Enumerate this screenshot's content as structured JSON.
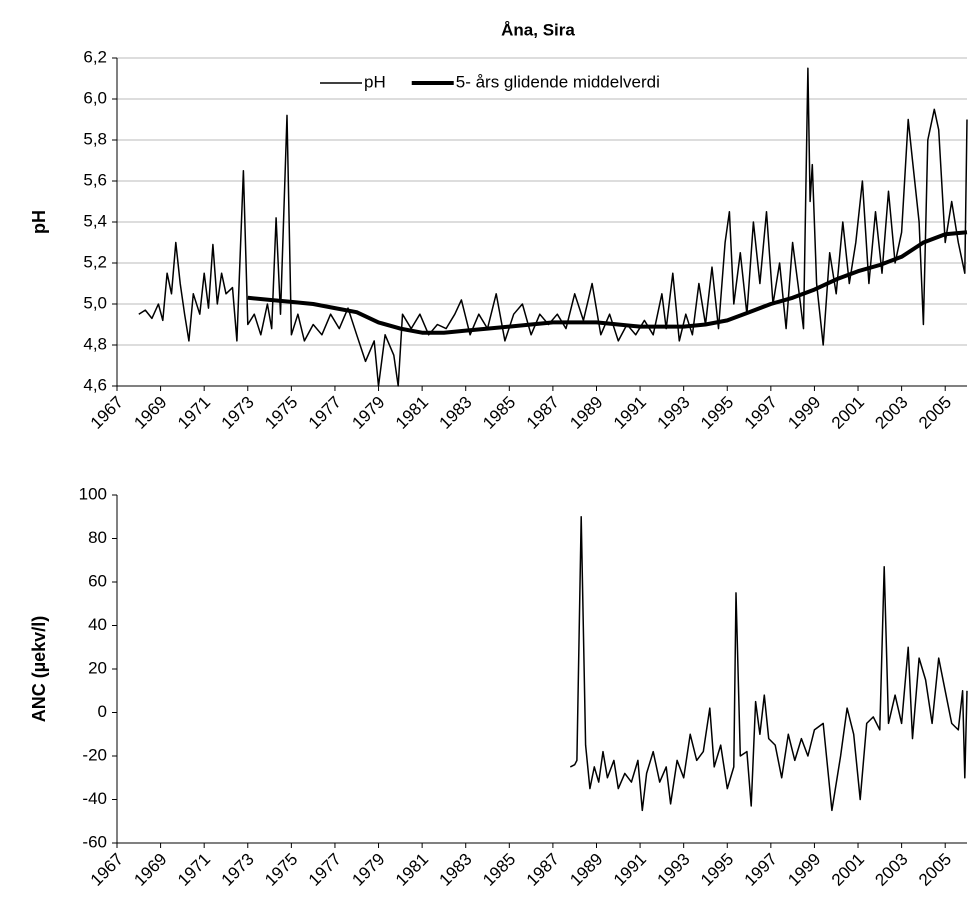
{
  "chart_data": [
    {
      "type": "line",
      "title": "Åna, Sira",
      "ylabel": "pH",
      "grid": true,
      "legend": "top",
      "xlim": [
        1967,
        2006
      ],
      "xticks": [
        1967,
        1969,
        1971,
        1973,
        1975,
        1977,
        1979,
        1981,
        1983,
        1985,
        1987,
        1989,
        1991,
        1993,
        1995,
        1997,
        1999,
        2001,
        2003,
        2005
      ],
      "ylim": [
        4.6,
        6.2
      ],
      "yticks": [
        {
          "value": 4.6,
          "label": "4,6"
        },
        {
          "value": 4.8,
          "label": "4,8"
        },
        {
          "value": 5.0,
          "label": "5,0"
        },
        {
          "value": 5.2,
          "label": "5,2"
        },
        {
          "value": 5.4,
          "label": "5,4"
        },
        {
          "value": 5.6,
          "label": "5,6"
        },
        {
          "value": 5.8,
          "label": "5,8"
        },
        {
          "value": 6.0,
          "label": "6,0"
        },
        {
          "value": 6.2,
          "label": "6,2"
        }
      ],
      "series": [
        {
          "name": "pH",
          "color": "#000000",
          "width": 1.5,
          "x": [
            1968.0,
            1968.3,
            1968.6,
            1968.9,
            1969.1,
            1969.3,
            1969.5,
            1969.7,
            1969.9,
            1970.1,
            1970.3,
            1970.5,
            1970.8,
            1971.0,
            1971.2,
            1971.4,
            1971.6,
            1971.8,
            1972.0,
            1972.3,
            1972.5,
            1972.8,
            1973.0,
            1973.3,
            1973.6,
            1973.9,
            1974.1,
            1974.3,
            1974.5,
            1974.8,
            1975.0,
            1975.3,
            1975.6,
            1976.0,
            1976.4,
            1976.8,
            1977.2,
            1977.6,
            1978.0,
            1978.4,
            1978.8,
            1979.0,
            1979.3,
            1979.7,
            1979.9,
            1980.1,
            1980.5,
            1980.9,
            1981.3,
            1981.7,
            1982.1,
            1982.5,
            1982.8,
            1983.2,
            1983.6,
            1984.0,
            1984.4,
            1984.8,
            1985.2,
            1985.6,
            1986.0,
            1986.4,
            1986.8,
            1987.2,
            1987.6,
            1988.0,
            1988.4,
            1988.8,
            1989.2,
            1989.6,
            1990.0,
            1990.4,
            1990.8,
            1991.2,
            1991.6,
            1992.0,
            1992.2,
            1992.5,
            1992.8,
            1993.1,
            1993.4,
            1993.7,
            1994.0,
            1994.3,
            1994.6,
            1994.9,
            1995.1,
            1995.3,
            1995.6,
            1995.9,
            1996.2,
            1996.5,
            1996.8,
            1997.1,
            1997.4,
            1997.7,
            1998.0,
            1998.3,
            1998.5,
            1998.7,
            1998.8,
            1998.9,
            1999.1,
            1999.4,
            1999.7,
            2000.0,
            2000.3,
            2000.6,
            2000.9,
            2001.2,
            2001.5,
            2001.8,
            2002.1,
            2002.4,
            2002.7,
            2003.0,
            2003.3,
            2003.5,
            2003.8,
            2004.0,
            2004.2,
            2004.5,
            2004.7,
            2005.0,
            2005.3,
            2005.6,
            2005.9,
            2006.0
          ],
          "values": [
            4.95,
            4.97,
            4.93,
            5.0,
            4.92,
            5.15,
            5.05,
            5.3,
            5.1,
            4.95,
            4.82,
            5.05,
            4.95,
            5.15,
            4.98,
            5.29,
            5.0,
            5.15,
            5.05,
            5.08,
            4.82,
            5.65,
            4.9,
            4.95,
            4.85,
            5.0,
            4.88,
            5.42,
            4.95,
            5.92,
            4.85,
            4.95,
            4.82,
            4.9,
            4.85,
            4.95,
            4.88,
            4.98,
            4.85,
            4.72,
            4.82,
            4.6,
            4.85,
            4.75,
            4.6,
            4.95,
            4.88,
            4.95,
            4.85,
            4.9,
            4.88,
            4.95,
            5.02,
            4.85,
            4.95,
            4.88,
            5.05,
            4.82,
            4.95,
            5.0,
            4.85,
            4.95,
            4.9,
            4.95,
            4.88,
            5.05,
            4.92,
            5.1,
            4.85,
            4.95,
            4.82,
            4.9,
            4.85,
            4.92,
            4.85,
            5.05,
            4.88,
            5.15,
            4.82,
            4.95,
            4.85,
            5.1,
            4.9,
            5.18,
            4.88,
            5.3,
            5.45,
            5.0,
            5.25,
            4.95,
            5.4,
            5.1,
            5.45,
            5.0,
            5.2,
            4.88,
            5.3,
            5.05,
            4.88,
            6.15,
            5.5,
            5.68,
            5.1,
            4.8,
            5.25,
            5.05,
            5.4,
            5.1,
            5.3,
            5.6,
            5.1,
            5.45,
            5.15,
            5.55,
            5.2,
            5.35,
            5.9,
            5.7,
            5.4,
            4.9,
            5.8,
            5.95,
            5.85,
            5.3,
            5.5,
            5.3,
            5.15,
            5.9
          ]
        },
        {
          "name": "5- års glidende middelverdi",
          "color": "#000000",
          "width": 4,
          "x": [
            1973,
            1974,
            1975,
            1976,
            1977,
            1978,
            1979,
            1980,
            1981,
            1982,
            1983,
            1984,
            1985,
            1986,
            1987,
            1988,
            1989,
            1990,
            1991,
            1992,
            1993,
            1994,
            1995,
            1996,
            1997,
            1998,
            1999,
            2000,
            2001,
            2002,
            2003,
            2004,
            2005,
            2006
          ],
          "values": [
            5.03,
            5.02,
            5.01,
            5.0,
            4.98,
            4.96,
            4.91,
            4.88,
            4.86,
            4.86,
            4.87,
            4.88,
            4.89,
            4.9,
            4.91,
            4.91,
            4.91,
            4.9,
            4.89,
            4.89,
            4.89,
            4.9,
            4.92,
            4.96,
            5.0,
            5.03,
            5.07,
            5.12,
            5.16,
            5.19,
            5.23,
            5.3,
            5.34,
            5.35
          ]
        }
      ]
    },
    {
      "type": "line",
      "ylabel": "ANC (µekv/l)",
      "grid": false,
      "xlim": [
        1967,
        2006
      ],
      "xticks": [
        1967,
        1969,
        1971,
        1973,
        1975,
        1977,
        1979,
        1981,
        1983,
        1985,
        1987,
        1989,
        1991,
        1993,
        1995,
        1997,
        1999,
        2001,
        2003,
        2005
      ],
      "ylim": [
        -60,
        100
      ],
      "yticks": [
        -60,
        -40,
        -20,
        0,
        20,
        40,
        60,
        80,
        100
      ],
      "series": [
        {
          "color": "#000000",
          "width": 1.5,
          "x": [
            1987.8,
            1988.0,
            1988.1,
            1988.3,
            1988.5,
            1988.7,
            1988.9,
            1989.1,
            1989.3,
            1989.5,
            1989.8,
            1990.0,
            1990.3,
            1990.6,
            1990.9,
            1991.1,
            1991.3,
            1991.6,
            1991.9,
            1992.2,
            1992.4,
            1992.7,
            1993.0,
            1993.3,
            1993.6,
            1993.9,
            1994.2,
            1994.4,
            1994.7,
            1995.0,
            1995.3,
            1995.4,
            1995.6,
            1995.9,
            1996.1,
            1996.3,
            1996.5,
            1996.7,
            1996.9,
            1997.2,
            1997.5,
            1997.8,
            1998.1,
            1998.4,
            1998.7,
            1999.0,
            1999.4,
            1999.8,
            2000.2,
            2000.5,
            2000.8,
            2001.1,
            2001.4,
            2001.7,
            2002.0,
            2002.2,
            2002.4,
            2002.7,
            2003.0,
            2003.3,
            2003.5,
            2003.8,
            2004.1,
            2004.4,
            2004.7,
            2005.0,
            2005.3,
            2005.6,
            2005.8,
            2005.9,
            2006.0
          ],
          "values": [
            -25,
            -24,
            -22,
            90,
            -15,
            -35,
            -25,
            -32,
            -18,
            -30,
            -22,
            -35,
            -28,
            -32,
            -22,
            -45,
            -28,
            -18,
            -32,
            -25,
            -42,
            -22,
            -30,
            -10,
            -22,
            -18,
            2,
            -25,
            -15,
            -35,
            -25,
            55,
            -20,
            -18,
            -43,
            5,
            -10,
            8,
            -12,
            -15,
            -30,
            -10,
            -22,
            -12,
            -20,
            -8,
            -5,
            -45,
            -20,
            2,
            -10,
            -40,
            -5,
            -2,
            -8,
            67,
            -5,
            8,
            -5,
            30,
            -12,
            25,
            15,
            -5,
            25,
            10,
            -5,
            -8,
            10,
            -30,
            10
          ]
        }
      ]
    }
  ]
}
